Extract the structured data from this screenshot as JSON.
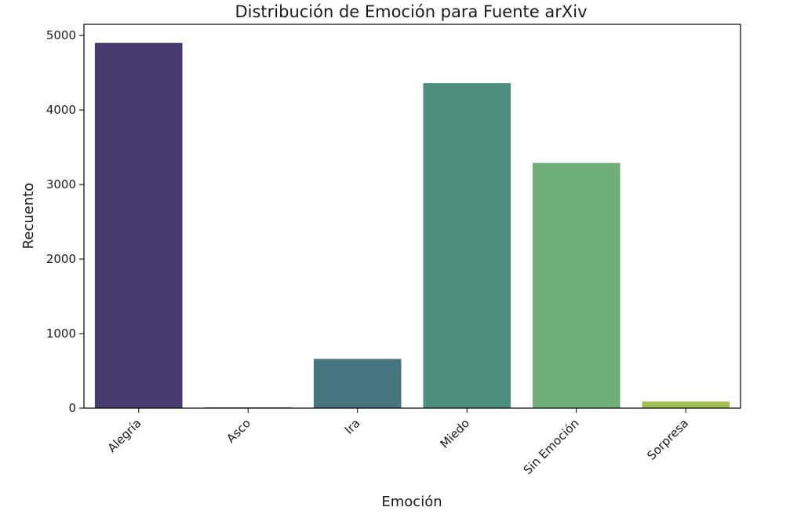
{
  "chart_data": {
    "type": "bar",
    "title": "Distribución de Emoción para Fuente arXiv",
    "xlabel": "Emoción",
    "ylabel": "Recuento",
    "categories": [
      "Alegría",
      "Asco",
      "Ira",
      "Miedo",
      "Sin Emoción",
      "Sorpresa"
    ],
    "values": [
      4900,
      10,
      660,
      4360,
      3290,
      90
    ],
    "colors": [
      "#463a6f",
      "#3f4d84",
      "#467580",
      "#4d8f7d",
      "#6fae79",
      "#a2c052"
    ],
    "ylim": [
      0,
      5150
    ],
    "yticks": [
      0,
      1000,
      2000,
      3000,
      4000,
      5000
    ],
    "grid": false,
    "legend": "none"
  }
}
